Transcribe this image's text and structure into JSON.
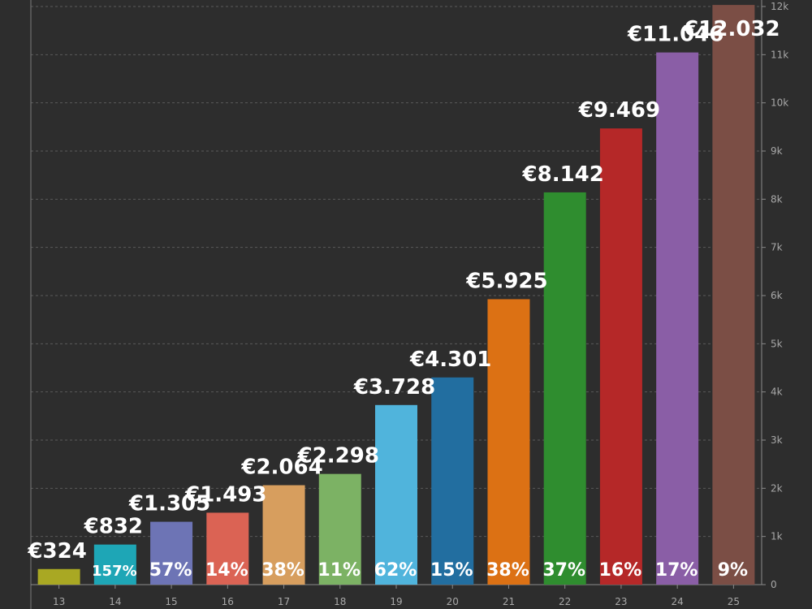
{
  "chart_data": {
    "type": "bar",
    "categories": [
      "13",
      "14",
      "15",
      "16",
      "17",
      "18",
      "19",
      "20",
      "21",
      "22",
      "23",
      "24",
      "25"
    ],
    "values": [
      324,
      832,
      1305,
      1493,
      2064,
      2298,
      3728,
      4301,
      5925,
      8142,
      9469,
      11046,
      12032
    ],
    "value_labels": [
      "€324",
      "€832",
      "€1.305",
      "€1.493",
      "€2.064",
      "€2.298",
      "€3.728",
      "€4.301",
      "€5.925",
      "€8.142",
      "€9.469",
      "€11.046",
      "€12.032"
    ],
    "growth_labels": [
      "",
      "157%",
      "57%",
      "14%",
      "38%",
      "11%",
      "62%",
      "15%",
      "38%",
      "37%",
      "16%",
      "17%",
      "9%"
    ],
    "colors": [
      "#a9a823",
      "#1ea6b6",
      "#6d74b5",
      "#db6354",
      "#d79e5e",
      "#7cb264",
      "#50b4dc",
      "#226ea0",
      "#dc7114",
      "#2f8d2f",
      "#b52828",
      "#8a5ea6",
      "#7b4e45"
    ],
    "ylim": [
      0,
      12000
    ],
    "yticks": [
      0,
      1000,
      2000,
      3000,
      4000,
      5000,
      6000,
      7000,
      8000,
      9000,
      10000,
      11000,
      12000
    ],
    "ytick_labels": [
      "0",
      "1k",
      "2k",
      "3k",
      "4k",
      "5k",
      "6k",
      "7k",
      "8k",
      "9k",
      "10k",
      "11k",
      "12k"
    ],
    "y_axis_side": "right",
    "grid": true,
    "title": "",
    "xlabel": "",
    "ylabel": ""
  }
}
